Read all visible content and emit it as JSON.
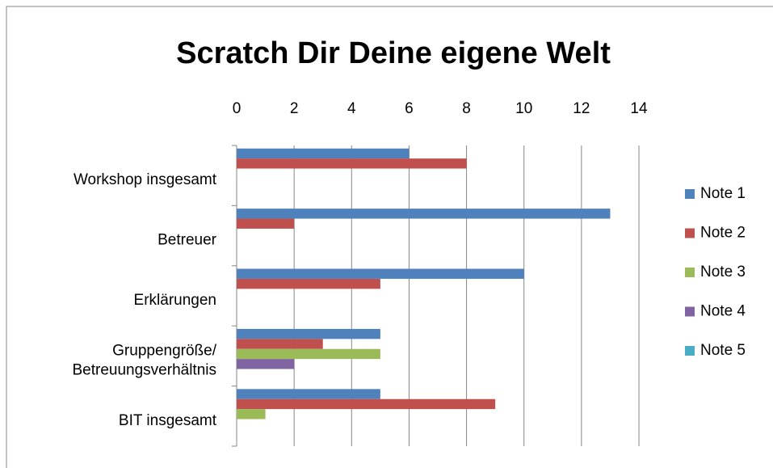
{
  "chart_data": {
    "type": "hbar",
    "title": "Scratch Dir Deine eigene Welt",
    "categories": [
      "Workshop insgesamt",
      "Betreuer",
      "Erklärungen",
      "Gruppengröße/\nBetreuungsverhältnis",
      "BIT insgesamt"
    ],
    "series": [
      {
        "name": "Note 1",
        "color": "#4f81bd",
        "values": [
          6,
          13,
          10,
          5,
          5
        ]
      },
      {
        "name": "Note 2",
        "color": "#c0504d",
        "values": [
          8,
          2,
          5,
          3,
          9
        ]
      },
      {
        "name": "Note 3",
        "color": "#9bbb59",
        "values": [
          0,
          0,
          0,
          5,
          1
        ]
      },
      {
        "name": "Note 4",
        "color": "#8064a2",
        "values": [
          0,
          0,
          0,
          2,
          0
        ]
      },
      {
        "name": "Note 5",
        "color": "#4bacc6",
        "values": [
          0,
          0,
          0,
          0,
          0
        ]
      }
    ],
    "xlim": [
      0,
      14
    ],
    "xticks": [
      0,
      2,
      4,
      6,
      8,
      10,
      12,
      14
    ],
    "grid": true,
    "legend": "right"
  }
}
